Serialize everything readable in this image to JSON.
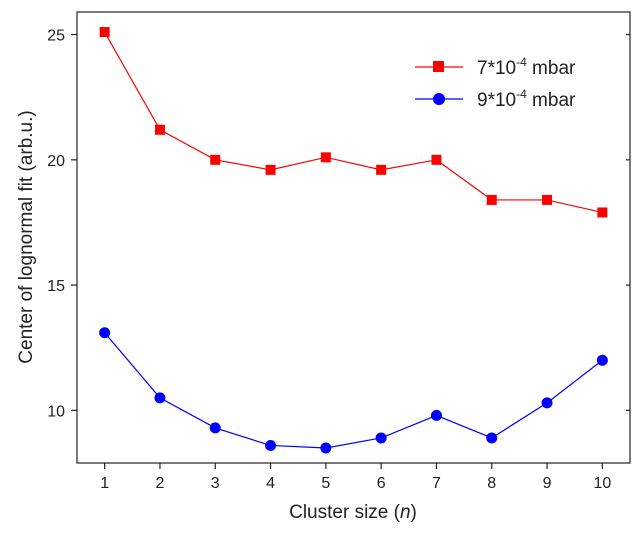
{
  "chart_data": {
    "type": "line",
    "xlabel": "Cluster size",
    "xlabel_var": "n",
    "ylabel": "Center of lognormal fit (arb.u.)",
    "x": [
      1,
      2,
      3,
      4,
      5,
      6,
      7,
      8,
      9,
      10
    ],
    "xticks": [
      "1",
      "2",
      "3",
      "4",
      "5",
      "6",
      "7",
      "8",
      "9",
      "10"
    ],
    "yticks": [
      "10",
      "15",
      "20",
      "25"
    ],
    "xlim": [
      0.5,
      10.5
    ],
    "ylim": [
      7.9,
      25.9
    ],
    "legend_position": "top-right",
    "grid": false,
    "series": [
      {
        "name": "7*10-4 mbar",
        "legend_base": "7*10",
        "legend_exp": "-4",
        "legend_unit": " mbar",
        "color": "#ff0000",
        "marker": "square",
        "values": [
          25.1,
          21.2,
          20.0,
          19.6,
          20.1,
          19.6,
          20.0,
          18.4,
          18.4,
          17.9
        ]
      },
      {
        "name": "9*10-4 mbar",
        "legend_base": "9*10",
        "legend_exp": "-4",
        "legend_unit": " mbar",
        "color": "#0000ff",
        "marker": "circle",
        "values": [
          13.1,
          10.5,
          9.3,
          8.6,
          8.5,
          8.9,
          9.8,
          8.9,
          10.3,
          12.0
        ]
      }
    ]
  }
}
